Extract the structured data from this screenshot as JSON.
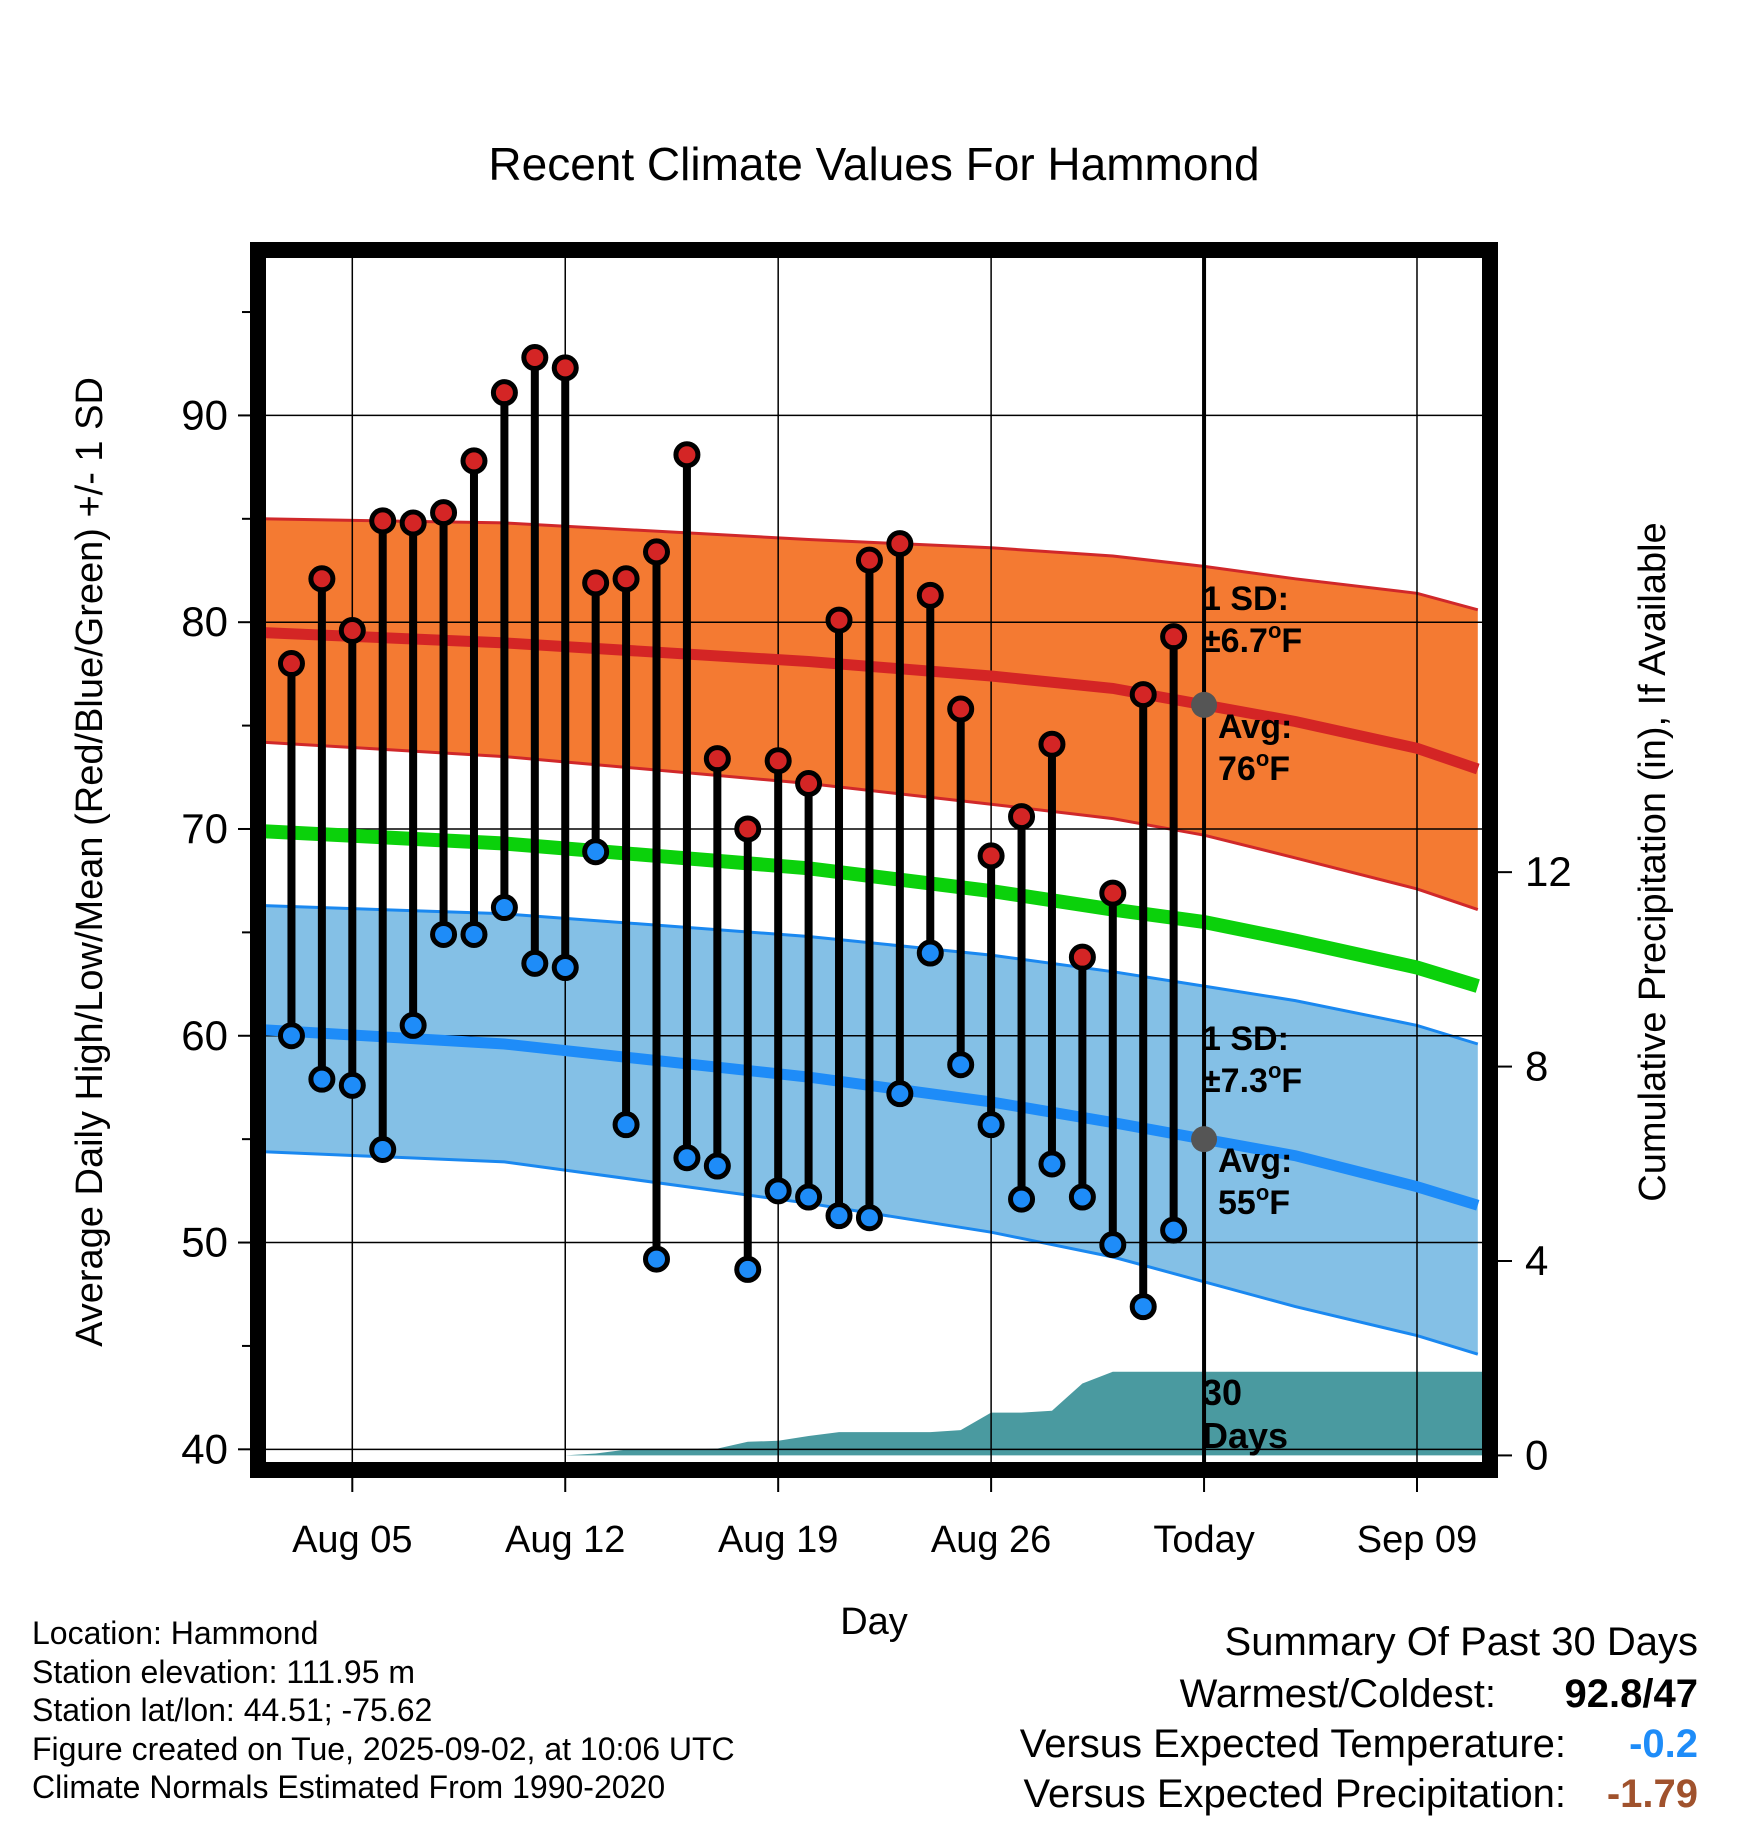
{
  "chart_data": {
    "type": "line",
    "title": "Recent Climate Values For Hammond",
    "xlabel": "Day",
    "ylabel": "Average Daily High/Low/Mean (Red/Blue/Green) +/- 1 SD",
    "y2label": "Cumulative Precipitation (in), If Available",
    "x_ticks": [
      {
        "day": 5,
        "label": "Aug 05"
      },
      {
        "day": 12,
        "label": "Aug 12"
      },
      {
        "day": 19,
        "label": "Aug 19"
      },
      {
        "day": 26,
        "label": "Aug 26"
      },
      {
        "day": 33,
        "label": "Today"
      },
      {
        "day": 40,
        "label": "Sep 09"
      }
    ],
    "xlim": [
      1.9,
      42.4
    ],
    "ylim": [
      39.0,
      98.0
    ],
    "y_ticks": [
      40,
      50,
      60,
      70,
      80,
      90
    ],
    "y2lim": [
      -0.3,
      24.8
    ],
    "y2_ticks": [
      0,
      4,
      8,
      12
    ],
    "days": [
      3,
      4,
      5,
      6,
      7,
      8,
      9,
      10,
      11,
      12,
      13,
      14,
      15,
      16,
      17,
      18,
      19,
      20,
      21,
      22,
      23,
      24,
      25,
      26,
      27,
      28,
      29,
      30,
      31,
      32
    ],
    "highs": [
      78.0,
      82.1,
      79.6,
      84.9,
      84.8,
      85.3,
      87.8,
      91.1,
      92.8,
      92.3,
      81.9,
      82.1,
      83.4,
      88.1,
      73.4,
      70.0,
      73.3,
      72.2,
      80.1,
      83.0,
      83.8,
      81.3,
      75.8,
      68.7,
      70.6,
      74.1,
      63.8,
      66.9,
      76.5,
      79.3
    ],
    "lows": [
      60.0,
      57.9,
      57.6,
      54.5,
      60.5,
      64.9,
      64.9,
      66.2,
      63.5,
      63.3,
      68.9,
      55.7,
      49.2,
      54.1,
      53.7,
      48.7,
      52.5,
      52.2,
      51.3,
      51.2,
      57.2,
      64.0,
      58.6,
      55.7,
      52.1,
      53.8,
      52.2,
      49.9,
      46.9,
      50.6
    ],
    "normals": {
      "x": [
        2,
        10,
        20,
        26,
        30,
        33,
        36,
        40,
        42
      ],
      "avg_high": [
        79.5,
        79.0,
        78.1,
        77.4,
        76.8,
        76.0,
        75.2,
        73.9,
        72.9
      ],
      "high_sd_upper": [
        85.0,
        84.8,
        84.0,
        83.6,
        83.2,
        82.7,
        82.1,
        81.4,
        80.6
      ],
      "high_sd_lower": [
        74.2,
        73.5,
        72.2,
        71.2,
        70.5,
        69.7,
        68.6,
        67.1,
        66.1
      ],
      "avg_mean": [
        69.9,
        69.3,
        68.1,
        67.0,
        66.1,
        65.5,
        64.6,
        63.3,
        62.4
      ],
      "avg_low": [
        60.3,
        59.6,
        58.0,
        56.8,
        55.8,
        55.0,
        54.2,
        52.7,
        51.8
      ],
      "low_sd_upper": [
        66.3,
        65.9,
        64.8,
        63.9,
        63.1,
        62.4,
        61.7,
        60.5,
        59.6
      ],
      "low_sd_lower": [
        54.4,
        53.9,
        51.9,
        50.5,
        49.3,
        48.1,
        46.9,
        45.5,
        44.6
      ]
    },
    "precipitation": {
      "days": [
        2,
        10,
        12,
        13,
        14,
        15,
        16,
        17,
        18,
        19,
        20,
        21,
        22,
        23,
        24,
        25,
        26,
        27,
        28,
        29,
        30,
        31,
        32,
        33,
        42.4
      ],
      "cumulative": [
        0,
        0,
        0,
        0.04,
        0.12,
        0.12,
        0.12,
        0.14,
        0.28,
        0.3,
        0.4,
        0.48,
        0.48,
        0.48,
        0.48,
        0.52,
        0.88,
        0.88,
        0.92,
        1.48,
        1.72,
        1.72,
        1.72,
        1.72,
        1.72
      ]
    },
    "today_marker_day": 33,
    "annotations": {
      "high_sd": [
        "1 SD:",
        "±6.7",
        "F"
      ],
      "high_avg": [
        "Avg:",
        "76",
        "F"
      ],
      "low_sd": [
        "1 SD:",
        "±7.3",
        "F"
      ],
      "low_avg": [
        "Avg:",
        "55",
        "F"
      ],
      "days_label": [
        "30",
        "Days"
      ],
      "degree_symbol": "o"
    },
    "grid": true,
    "colors": {
      "high_band": "#f47a32",
      "high_avg_line": "#d42525",
      "high_band_edge": "#d0282a",
      "low_band": "#84c0e6",
      "low_avg_line": "#1e8cf8",
      "low_band_edge": "#1a88f0",
      "mean_line": "#0bd10b",
      "precip_fill": "#4a9aa0",
      "high_marker": "#d42525",
      "low_marker": "#1e8cf8",
      "annotation_text": "#555555",
      "frame": "#000000"
    }
  },
  "info": {
    "location": "Location: Hammond",
    "elevation": "Station elevation: 111.95 m",
    "latlon": "Station lat/lon: 44.51; -75.62",
    "created": "Figure created on Tue, 2025-09-02, at 10:06 UTC",
    "normals": "Climate Normals Estimated From 1990-2020"
  },
  "summary": {
    "title": "Summary Of Past 30 Days",
    "warm_cold_label": "Warmest/Coldest:",
    "warm_cold_value": "92.8/47",
    "temp_label": "Versus Expected Temperature:",
    "temp_value": "-0.2",
    "temp_value_color": "#1e8cf8",
    "precip_label": "Versus Expected Precipitation:",
    "precip_value": "-1.79",
    "precip_value_color": "#a0522d"
  }
}
